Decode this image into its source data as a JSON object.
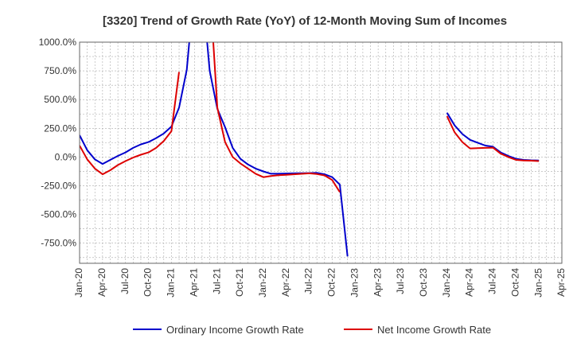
{
  "chart_data": {
    "type": "line",
    "title": "[3320]  Trend of Growth Rate (YoY) of 12-Month Moving Sum of Incomes",
    "xlabel": "",
    "ylabel": "",
    "ylim": [
      -925,
      1000
    ],
    "xlim": [
      "2020-01",
      "2025-04"
    ],
    "yticks": [
      1000,
      750,
      500,
      250,
      0,
      -250,
      -500,
      -750
    ],
    "ytick_labels": [
      "1000.0%",
      "750.0%",
      "500.0%",
      "250.0%",
      "0.0%",
      "-250.0%",
      "-500.0%",
      "-750.0%"
    ],
    "xticks": [
      "2020-01",
      "2020-04",
      "2020-07",
      "2020-10",
      "2021-01",
      "2021-04",
      "2021-07",
      "2021-10",
      "2022-01",
      "2022-04",
      "2022-07",
      "2022-10",
      "2023-01",
      "2023-04",
      "2023-07",
      "2023-10",
      "2024-01",
      "2024-04",
      "2024-07",
      "2024-10",
      "2025-01",
      "2025-04"
    ],
    "xtick_labels": [
      "Jan-20",
      "Apr-20",
      "Jul-20",
      "Oct-20",
      "Jan-21",
      "Apr-21",
      "Jul-21",
      "Oct-21",
      "Jan-22",
      "Apr-22",
      "Jul-22",
      "Oct-22",
      "Jan-23",
      "Apr-23",
      "Jul-23",
      "Oct-23",
      "Jan-24",
      "Apr-24",
      "Jul-24",
      "Oct-24",
      "Jan-25",
      "Apr-25"
    ],
    "grid": true,
    "legend_position": "bottom",
    "series": [
      {
        "name": "Ordinary Income Growth Rate",
        "color": "#0000cc",
        "points": [
          [
            "2020-01",
            190
          ],
          [
            "2020-02",
            60
          ],
          [
            "2020-03",
            -20
          ],
          [
            "2020-04",
            -60
          ],
          [
            "2020-05",
            -25
          ],
          [
            "2020-06",
            10
          ],
          [
            "2020-07",
            40
          ],
          [
            "2020-08",
            80
          ],
          [
            "2020-09",
            110
          ],
          [
            "2020-10",
            130
          ],
          [
            "2020-11",
            165
          ],
          [
            "2020-12",
            205
          ],
          [
            "2021-01",
            265
          ],
          [
            "2021-02",
            430
          ],
          [
            "2021-03",
            760
          ],
          [
            "2021-04",
            1500
          ],
          [
            "2021-05",
            1500
          ],
          [
            "2021-06",
            750
          ],
          [
            "2021-07",
            420
          ],
          [
            "2021-08",
            260
          ],
          [
            "2021-09",
            80
          ],
          [
            "2021-10",
            -15
          ],
          [
            "2021-11",
            -65
          ],
          [
            "2021-12",
            -100
          ],
          [
            "2022-01",
            -125
          ],
          [
            "2022-02",
            -145
          ],
          [
            "2022-03",
            -145
          ],
          [
            "2022-04",
            -143
          ],
          [
            "2022-05",
            -142
          ],
          [
            "2022-06",
            -141
          ],
          [
            "2022-07",
            -140
          ],
          [
            "2022-08",
            -138
          ],
          [
            "2022-09",
            -150
          ],
          [
            "2022-10",
            -175
          ],
          [
            "2022-11",
            -240
          ],
          [
            "2022-12",
            -865
          ],
          null,
          [
            "2024-01",
            385
          ],
          [
            "2024-02",
            275
          ],
          [
            "2024-03",
            200
          ],
          [
            "2024-04",
            150
          ],
          [
            "2024-05",
            125
          ],
          [
            "2024-06",
            100
          ],
          [
            "2024-07",
            90
          ],
          [
            "2024-08",
            40
          ],
          [
            "2024-09",
            10
          ],
          [
            "2024-10",
            -15
          ],
          [
            "2024-11",
            -25
          ],
          [
            "2024-12",
            -28
          ],
          [
            "2025-01",
            -30
          ]
        ]
      },
      {
        "name": "Net Income Growth Rate",
        "color": "#dd0000",
        "points": [
          [
            "2020-01",
            100
          ],
          [
            "2020-02",
            -20
          ],
          [
            "2020-03",
            -100
          ],
          [
            "2020-04",
            -150
          ],
          [
            "2020-05",
            -115
          ],
          [
            "2020-06",
            -70
          ],
          [
            "2020-07",
            -35
          ],
          [
            "2020-08",
            -5
          ],
          [
            "2020-09",
            20
          ],
          [
            "2020-10",
            40
          ],
          [
            "2020-11",
            80
          ],
          [
            "2020-12",
            140
          ],
          [
            "2021-01",
            225
          ],
          [
            "2021-02",
            740
          ],
          null,
          [
            "2021-06",
            1500
          ],
          [
            "2021-07",
            430
          ],
          [
            "2021-08",
            130
          ],
          [
            "2021-09",
            0
          ],
          [
            "2021-10",
            -55
          ],
          [
            "2021-11",
            -100
          ],
          [
            "2021-12",
            -145
          ],
          [
            "2022-01",
            -175
          ],
          [
            "2022-02",
            -165
          ],
          [
            "2022-03",
            -158
          ],
          [
            "2022-04",
            -155
          ],
          [
            "2022-05",
            -150
          ],
          [
            "2022-06",
            -146
          ],
          [
            "2022-07",
            -142
          ],
          [
            "2022-08",
            -148
          ],
          [
            "2022-09",
            -160
          ],
          [
            "2022-10",
            -200
          ],
          [
            "2022-11",
            -305
          ],
          null,
          [
            "2024-01",
            355
          ],
          [
            "2024-02",
            215
          ],
          [
            "2024-03",
            130
          ],
          [
            "2024-04",
            75
          ],
          [
            "2024-05",
            78
          ],
          [
            "2024-06",
            80
          ],
          [
            "2024-07",
            82
          ],
          [
            "2024-08",
            30
          ],
          [
            "2024-09",
            0
          ],
          [
            "2024-10",
            -25
          ],
          [
            "2024-11",
            -30
          ],
          [
            "2024-12",
            -32
          ],
          [
            "2025-01",
            -35
          ]
        ]
      }
    ]
  }
}
